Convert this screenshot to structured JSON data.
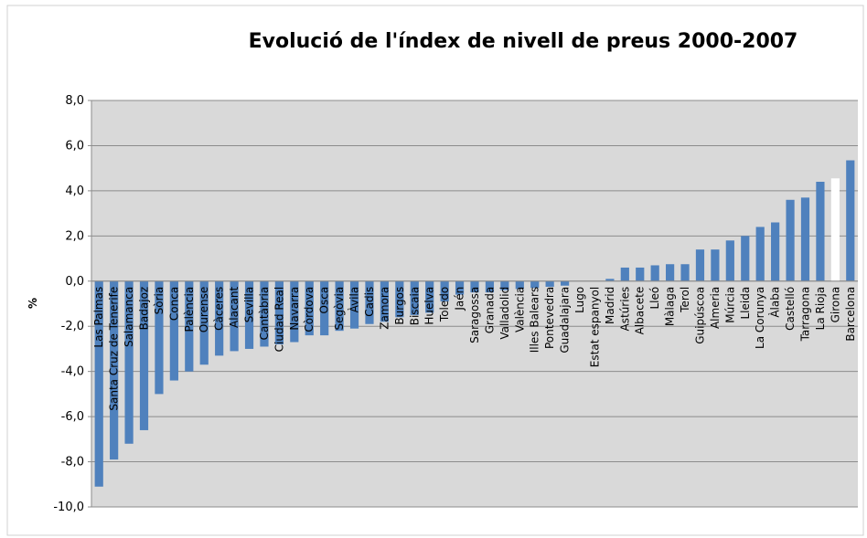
{
  "chart_data": {
    "type": "bar",
    "title": "Evolució de l'índex de nivell de preus 2000-2007",
    "y_label": "%",
    "categories": [
      "Las Palmas",
      "Santa Cruz de Tenerife",
      "Salamanca",
      "Badajoz",
      "Sòria",
      "Conca",
      "Palència",
      "Ourense",
      "Càceres",
      "Alacant",
      "Sevilla",
      "Cantàbria",
      "Ciudad Real",
      "Navarra",
      "Còrdova",
      "Osca",
      "Segòvia",
      "Àvila",
      "Cadis",
      "Zamora",
      "Burgos",
      "Biscaia",
      "Huelva",
      "Toledo",
      "Jaén",
      "Saragossa",
      "Granada",
      "Valladolid",
      "València",
      "Illes Balears",
      "Pontevedra",
      "Guadalajara",
      "Lugo",
      "Estat espanyol",
      "Madrid",
      "Astúries",
      "Albacete",
      "Lleó",
      "Màlaga",
      "Terol",
      "Guipúscoa",
      "Almeria",
      "Múrcia",
      "Lleida",
      "La Corunya",
      "Àlaba",
      "Castelló",
      "Tarragona",
      "La Rioja",
      "Girona",
      "Barcelona"
    ],
    "values": [
      -9.1,
      -7.9,
      -7.2,
      -6.6,
      -5.0,
      -4.4,
      -4.0,
      -3.7,
      -3.3,
      -3.1,
      -3.0,
      -2.9,
      -2.8,
      -2.7,
      -2.4,
      -2.4,
      -2.2,
      -2.1,
      -1.9,
      -1.8,
      -1.6,
      -1.5,
      -1.4,
      -0.9,
      -0.6,
      -0.5,
      -0.5,
      -0.4,
      -0.35,
      -0.3,
      -0.25,
      -0.2,
      0.0,
      0.0,
      0.1,
      0.6,
      0.6,
      0.7,
      0.75,
      0.75,
      1.4,
      1.4,
      1.8,
      2.0,
      2.4,
      2.6,
      3.6,
      3.7,
      4.4,
      4.55,
      5.35
    ],
    "colors": [
      "#4f81bd",
      "#4f81bd",
      "#4f81bd",
      "#4f81bd",
      "#4f81bd",
      "#4f81bd",
      "#4f81bd",
      "#4f81bd",
      "#4f81bd",
      "#4f81bd",
      "#4f81bd",
      "#4f81bd",
      "#4f81bd",
      "#4f81bd",
      "#4f81bd",
      "#4f81bd",
      "#4f81bd",
      "#4f81bd",
      "#4f81bd",
      "#4f81bd",
      "#4f81bd",
      "#4f81bd",
      "#4f81bd",
      "#4f81bd",
      "#4f81bd",
      "#4f81bd",
      "#4f81bd",
      "#4f81bd",
      "#4f81bd",
      "#4f81bd",
      "#4f81bd",
      "#4f81bd",
      "#4f81bd",
      "#4f81bd",
      "#4f81bd",
      "#4f81bd",
      "#4f81bd",
      "#4f81bd",
      "#4f81bd",
      "#4f81bd",
      "#4f81bd",
      "#4f81bd",
      "#4f81bd",
      "#4f81bd",
      "#4f81bd",
      "#4f81bd",
      "#4f81bd",
      "#4f81bd",
      "#4f81bd",
      "#ffffff",
      "#4f81bd"
    ],
    "ylim": [
      -10,
      8
    ],
    "yticks": [
      {
        "value": -10,
        "label": "-10,0"
      },
      {
        "value": -8,
        "label": "-8,0"
      },
      {
        "value": -6,
        "label": "-6,0"
      },
      {
        "value": -4,
        "label": "-4,0"
      },
      {
        "value": -2,
        "label": "-2,0"
      },
      {
        "value": 0,
        "label": "0,0"
      },
      {
        "value": 2,
        "label": "2,0"
      },
      {
        "value": 4,
        "label": "4,0"
      },
      {
        "value": 6,
        "label": "6,0"
      },
      {
        "value": 8,
        "label": "8,0"
      }
    ],
    "grid": true
  }
}
